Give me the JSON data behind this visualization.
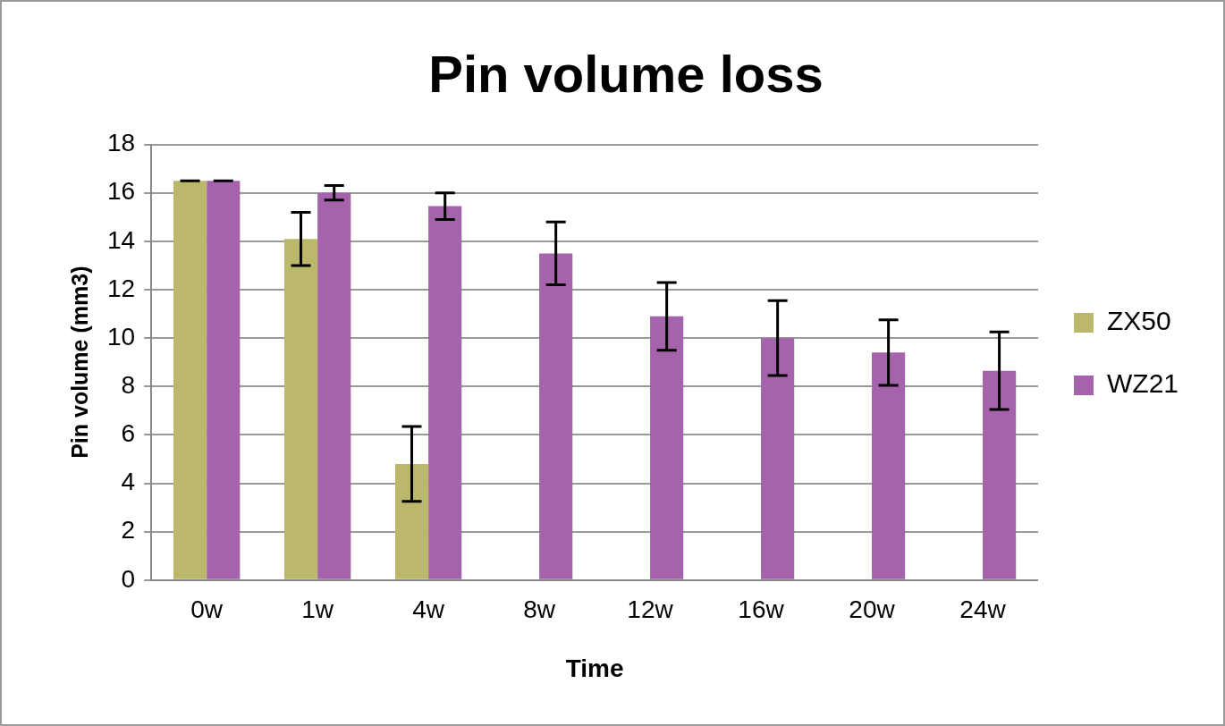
{
  "chart_data": {
    "type": "bar",
    "title": "Pin volume loss",
    "xlabel": "Time",
    "ylabel": "Pin volume (mm3)",
    "categories": [
      "0w",
      "1w",
      "4w",
      "8w",
      "12w",
      "16w",
      "20w",
      "24w"
    ],
    "series": [
      {
        "name": "ZX50",
        "color": "#bbb76b",
        "values": [
          16.5,
          14.1,
          4.8,
          0,
          0,
          0,
          0,
          0
        ],
        "errors": [
          0,
          1.1,
          1.55,
          null,
          null,
          null,
          null,
          null
        ]
      },
      {
        "name": "WZ21",
        "color": "#a563ab",
        "values": [
          16.5,
          16.0,
          15.45,
          13.5,
          10.9,
          10.0,
          9.4,
          8.65
        ],
        "errors": [
          0,
          0.3,
          0.55,
          1.3,
          1.4,
          1.55,
          1.35,
          1.6
        ]
      }
    ],
    "ylim": [
      0,
      18
    ],
    "yticks": [
      0,
      2,
      4,
      6,
      8,
      10,
      12,
      14,
      16,
      18
    ],
    "grid": "y",
    "legend": "right"
  }
}
